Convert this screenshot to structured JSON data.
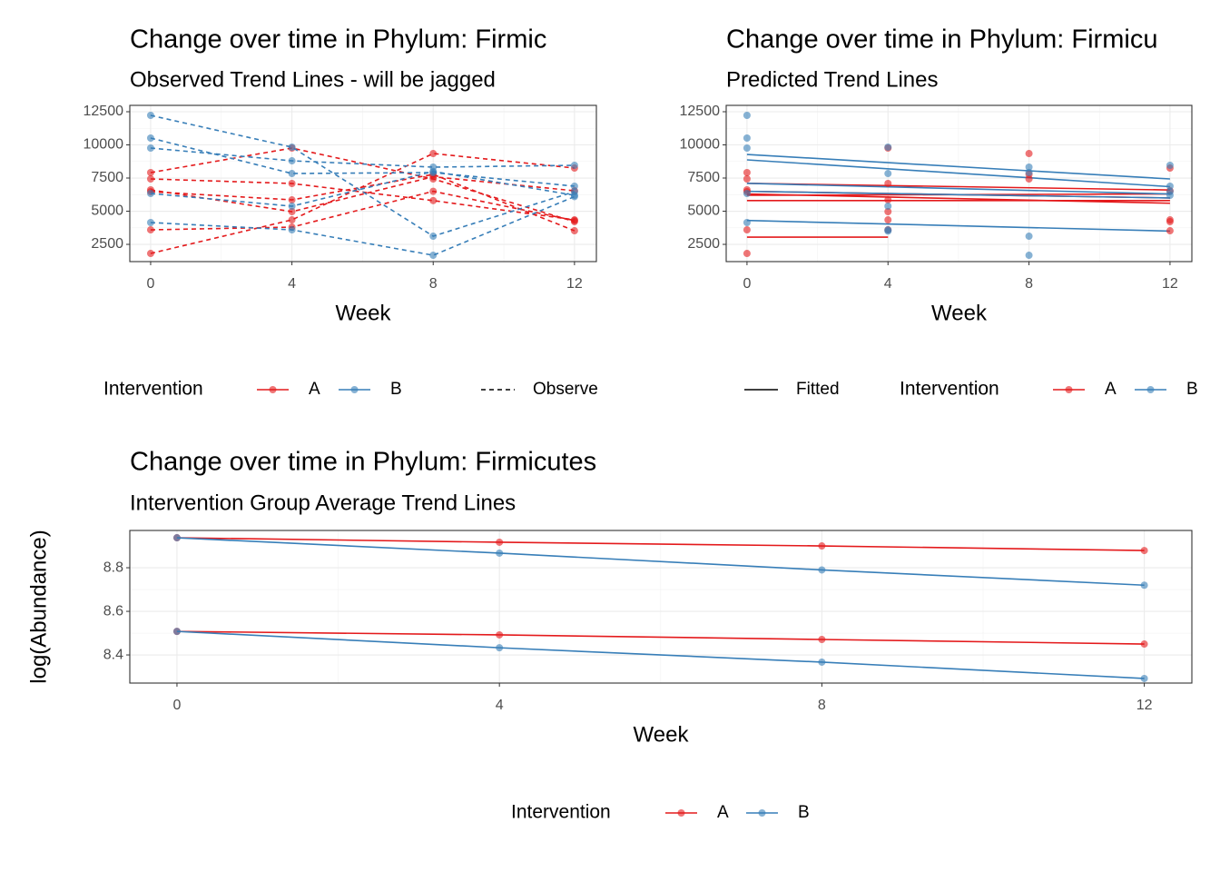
{
  "chart_data": [
    {
      "type": "line",
      "title": "Change over time in Phylum: Firmic",
      "subtitle": "Observed Trend Lines - will be jagged",
      "x_label": "Week",
      "xlim": [
        -0.59,
        12.62
      ],
      "xticks": [
        0,
        4,
        8,
        12
      ],
      "ylim": [
        1200,
        12980
      ],
      "yticks": [
        2500,
        5000,
        7500,
        10000,
        12500
      ],
      "grid": true,
      "line_style": "dashed",
      "points": true,
      "legend_title": "Intervention",
      "groups": [
        {
          "name": "A",
          "color": "#e41a1c"
        },
        {
          "name": "B",
          "color": "#377eb8"
        }
      ],
      "linetype_label": "Observe",
      "series": [
        {
          "color": "#e41a1c",
          "x": [
            0,
            4,
            8,
            12
          ],
          "values": [
            1815,
            4349,
            9349,
            8253
          ]
        },
        {
          "color": "#e41a1c",
          "x": [
            0,
            4,
            8,
            12
          ],
          "values": [
            7911,
            9760,
            7432,
            4212
          ]
        },
        {
          "color": "#e41a1c",
          "x": [
            0,
            4,
            8,
            12
          ],
          "values": [
            7432,
            7089,
            5800,
            4349
          ]
        },
        {
          "color": "#e41a1c",
          "x": [
            0,
            4,
            8,
            12
          ],
          "values": [
            6473,
            5856,
            7774,
            3527
          ]
        },
        {
          "color": "#e41a1c",
          "x": [
            0,
            4,
            8,
            12
          ],
          "values": [
            6610,
            4966,
            7600,
            6541
          ]
        },
        {
          "color": "#e41a1c",
          "x": [
            0,
            4,
            8,
            12
          ],
          "values": [
            3596,
            3800,
            6500,
            4300
          ]
        },
        {
          "color": "#377eb8",
          "x": [
            0,
            4,
            8,
            12
          ],
          "values": [
            12226,
            9829,
            3116,
            6473
          ]
        },
        {
          "color": "#377eb8",
          "x": [
            0,
            4,
            8,
            12
          ],
          "values": [
            10514,
            7842,
            7911,
            6884
          ]
        },
        {
          "color": "#377eb8",
          "x": [
            0,
            4,
            8,
            12
          ],
          "values": [
            9760,
            8800,
            8322,
            8459
          ]
        },
        {
          "color": "#377eb8",
          "x": [
            0,
            4,
            8,
            12
          ],
          "values": [
            6336,
            5377,
            8000,
            6200
          ]
        },
        {
          "color": "#377eb8",
          "x": [
            0,
            4,
            8,
            12
          ],
          "values": [
            4144,
            3596,
            1678,
            6100
          ]
        }
      ]
    },
    {
      "type": "line",
      "title": "Change over time in Phylum: Firmicu",
      "subtitle": "Predicted Trend Lines",
      "x_label": "Week",
      "xlim": [
        -0.59,
        12.62
      ],
      "xticks": [
        0,
        4,
        8,
        12
      ],
      "ylim": [
        1200,
        12980
      ],
      "yticks": [
        2500,
        5000,
        7500,
        10000,
        12500
      ],
      "grid": true,
      "line_style": "solid",
      "points": false,
      "legend_title": "Intervention",
      "groups": [
        {
          "name": "A",
          "color": "#e41a1c"
        },
        {
          "name": "B",
          "color": "#377eb8"
        }
      ],
      "linetype_label": "Fitted",
      "series": [
        {
          "color": "#e41a1c",
          "x": [
            0,
            4
          ],
          "values": [
            3048,
            3048
          ]
        },
        {
          "color": "#e41a1c",
          "x": [
            0,
            12
          ],
          "values": [
            6300,
            5600
          ]
        },
        {
          "color": "#e41a1c",
          "x": [
            0,
            12
          ],
          "values": [
            6500,
            6000
          ]
        },
        {
          "color": "#e41a1c",
          "x": [
            0,
            12
          ],
          "values": [
            7100,
            6600
          ]
        },
        {
          "color": "#e41a1c",
          "x": [
            0,
            12
          ],
          "values": [
            6200,
            6300
          ]
        },
        {
          "color": "#e41a1c",
          "x": [
            0,
            12
          ],
          "values": [
            5800,
            5800
          ]
        },
        {
          "color": "#377eb8",
          "x": [
            0,
            12
          ],
          "values": [
            9280,
            7432
          ]
        },
        {
          "color": "#377eb8",
          "x": [
            0,
            12
          ],
          "values": [
            8870,
            6850
          ]
        },
        {
          "color": "#377eb8",
          "x": [
            0,
            12
          ],
          "values": [
            7100,
            6300
          ]
        },
        {
          "color": "#377eb8",
          "x": [
            0,
            12
          ],
          "values": [
            6500,
            6000
          ]
        },
        {
          "color": "#377eb8",
          "x": [
            0,
            12
          ],
          "values": [
            4300,
            3500
          ]
        }
      ],
      "point_sets": [
        {
          "color": "#e41a1c",
          "x": [
            0,
            0,
            0,
            0,
            0,
            0,
            4,
            4,
            4,
            4,
            4,
            4,
            8,
            8,
            8,
            12,
            12,
            12,
            12,
            12
          ],
          "values": [
            7911,
            7432,
            6473,
            6610,
            3596,
            1815,
            9760,
            7089,
            5856,
            4966,
            4349,
            3596,
            9349,
            7774,
            7432,
            8253,
            6541,
            4349,
            4212,
            3527
          ]
        },
        {
          "color": "#377eb8",
          "x": [
            0,
            0,
            0,
            0,
            0,
            4,
            4,
            4,
            4,
            4,
            8,
            8,
            8,
            8,
            12,
            12,
            12,
            12
          ],
          "values": [
            12226,
            10514,
            9760,
            6336,
            4144,
            9829,
            7842,
            5377,
            3596,
            3500,
            8322,
            7911,
            3116,
            1678,
            8459,
            6884,
            6473,
            6200
          ]
        }
      ]
    },
    {
      "type": "line",
      "title": "Change over time in Phylum: Firmicutes",
      "subtitle": "Intervention Group Average Trend Lines",
      "x_label": "Week",
      "y_label": "log(Abundance)",
      "xlim": [
        -0.585,
        12.59
      ],
      "xticks": [
        0,
        4,
        8,
        12
      ],
      "ylim": [
        8.271,
        8.971
      ],
      "yticks": [
        8.4,
        8.6,
        8.8
      ],
      "grid": true,
      "line_style": "solid",
      "points": true,
      "legend_title": "Intervention",
      "groups": [
        {
          "name": "A",
          "color": "#e41a1c"
        },
        {
          "name": "B",
          "color": "#377eb8"
        }
      ],
      "series": [
        {
          "color": "#e41a1c",
          "x": [
            0,
            4,
            8,
            12
          ],
          "values": [
            8.9375,
            8.917,
            8.9,
            8.879
          ]
        },
        {
          "color": "#377eb8",
          "x": [
            0,
            4,
            8,
            12
          ],
          "values": [
            8.9375,
            8.867,
            8.79,
            8.72
          ]
        },
        {
          "color": "#e41a1c",
          "x": [
            0,
            4,
            8,
            12
          ],
          "values": [
            8.508,
            8.492,
            8.471,
            8.45
          ]
        },
        {
          "color": "#377eb8",
          "x": [
            0,
            4,
            8,
            12
          ],
          "values": [
            8.508,
            8.433,
            8.367,
            8.292
          ]
        }
      ]
    }
  ]
}
